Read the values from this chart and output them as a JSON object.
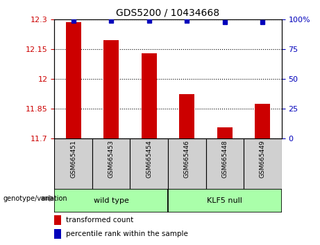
{
  "title": "GDS5200 / 10434668",
  "samples": [
    "GSM665451",
    "GSM665453",
    "GSM665454",
    "GSM665446",
    "GSM665448",
    "GSM665449"
  ],
  "bar_values": [
    12.287,
    12.195,
    12.13,
    11.925,
    11.755,
    11.875
  ],
  "percentile_values": [
    99,
    99,
    99,
    99,
    98,
    98
  ],
  "ylim_left": [
    11.7,
    12.3
  ],
  "ylim_right": [
    0,
    100
  ],
  "yticks_left": [
    11.7,
    11.85,
    12.0,
    12.15,
    12.3
  ],
  "ytick_left_labels": [
    "11.7",
    "11.85",
    "12",
    "12.15",
    "12.3"
  ],
  "yticks_right": [
    0,
    25,
    50,
    75,
    100
  ],
  "ytick_right_labels": [
    "0",
    "25",
    "50",
    "75",
    "100%"
  ],
  "bar_color": "#cc0000",
  "dot_color": "#0000bb",
  "wild_type_label": "wild type",
  "klf5_label": "KLF5 null",
  "genotype_label": "genotype/variation",
  "legend_bar_label": "transformed count",
  "legend_dot_label": "percentile rank within the sample",
  "sample_bg_color": "#d0d0d0",
  "wild_type_bg": "#aaffaa",
  "klf5_bg": "#aaffaa",
  "left_tick_color": "#cc0000",
  "right_tick_color": "#0000bb",
  "dot_size": 5,
  "bar_width": 0.4
}
